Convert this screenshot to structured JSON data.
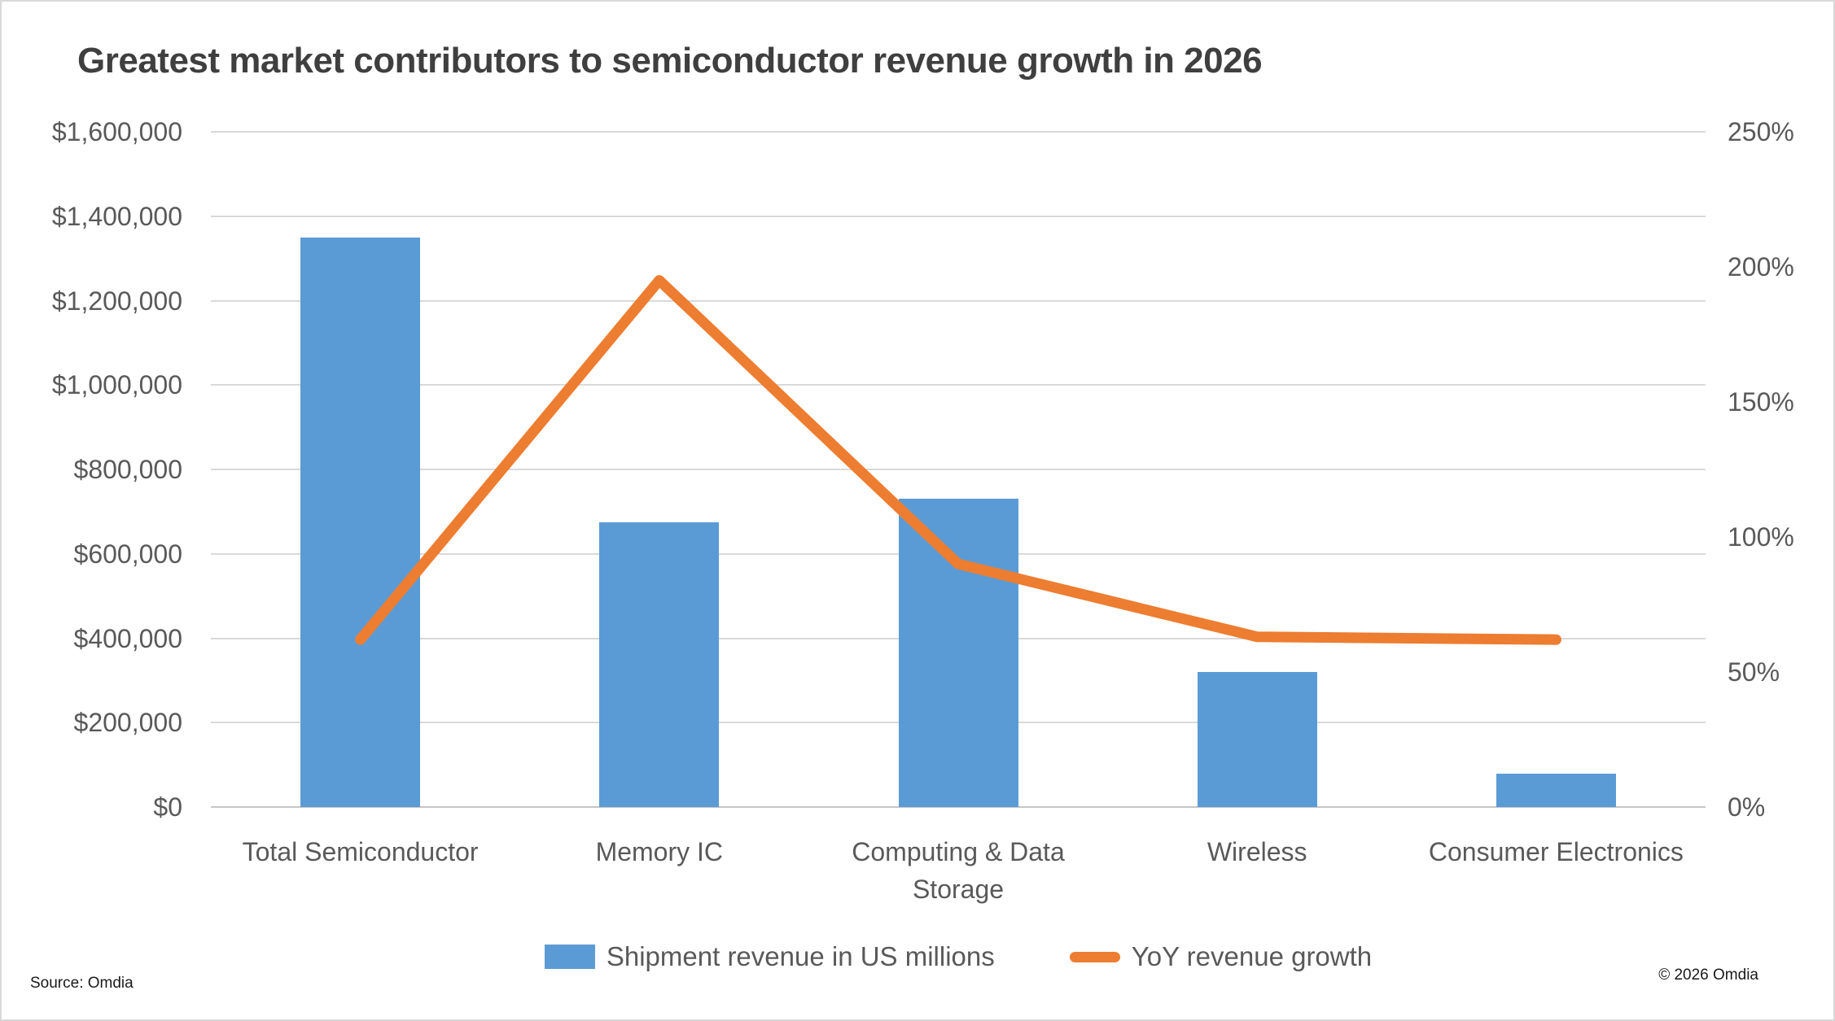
{
  "title": "Greatest market contributors to semiconductor revenue growth in 2026",
  "source": "Source: Omdia",
  "copyright": "© 2026 Omdia",
  "colors": {
    "bar": "#5b9bd5",
    "line": "#ed7d31",
    "axis_text": "#595959",
    "title_text": "#3f3f3f",
    "gridline": "#d9d9d9"
  },
  "legend": {
    "items": [
      {
        "type": "bar",
        "label": "Shipment revenue in US millions"
      },
      {
        "type": "line",
        "label": "YoY revenue growth"
      }
    ]
  },
  "chart_data": {
    "type": "bar",
    "subtype": "combo bar+line, dual axis",
    "title": "Greatest market contributors to semiconductor revenue growth in 2026",
    "categories": [
      "Total Semiconductor",
      "Memory IC",
      "Computing & Data Storage",
      "Wireless",
      "Consumer Electronics"
    ],
    "series": [
      {
        "name": "Shipment revenue in US millions",
        "type": "bar",
        "axis": "left",
        "values": [
          1350000,
          675000,
          730000,
          320000,
          80000
        ]
      },
      {
        "name": "YoY revenue growth",
        "type": "line",
        "axis": "right",
        "values": [
          62,
          195,
          90,
          63,
          62
        ],
        "unit": "%"
      }
    ],
    "left_axis": {
      "min": 0,
      "max": 1600000,
      "step": 200000,
      "ticks_top_to_bottom": [
        "$1,600,000",
        "$1,400,000",
        "$1,200,000",
        "$1,000,000",
        "$800,000",
        "$600,000",
        "$400,000",
        "$200,000",
        "$0"
      ]
    },
    "right_axis": {
      "min": 0,
      "max": 250,
      "step": 50,
      "ticks_top_to_bottom": [
        "250%",
        "200%",
        "150%",
        "100%",
        "50%",
        "0%"
      ]
    },
    "grid": "horizontal gridlines at left-axis ticks",
    "legend_position": "bottom center"
  }
}
